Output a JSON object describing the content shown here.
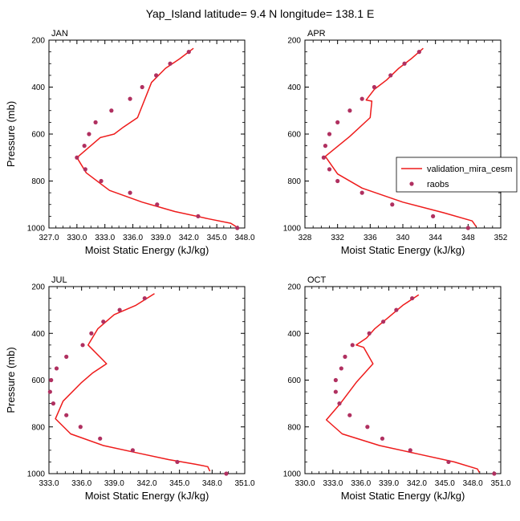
{
  "figure": {
    "title": "Yap_Island  latitude= 9.4 N longitude= 138.1 E"
  },
  "legend": {
    "placement": "right-middle",
    "items": [
      {
        "label": "validation_mira_cesm",
        "kind": "line",
        "color": "#ee1b1b"
      },
      {
        "label": "raobs",
        "kind": "marker",
        "color": "#b03060"
      }
    ]
  },
  "chart_data": [
    {
      "type": "line",
      "panel": "JAN",
      "xlabel": "Moist Static Energy (kJ/kg)",
      "ylabel": "Pressure (mb)",
      "xlim": [
        327.0,
        348.0
      ],
      "ylim": [
        200,
        1000
      ],
      "y_reversed": true,
      "xticks": [
        "327.0",
        "330.0",
        "333.0",
        "336.0",
        "339.0",
        "342.0",
        "345.0",
        "348.0"
      ],
      "yticks": [
        "200",
        "400",
        "600",
        "800",
        "1000"
      ],
      "series": [
        {
          "name": "validation_mira_cesm",
          "kind": "line",
          "points": [
            [
              342.5,
              235
            ],
            [
              341.0,
              280
            ],
            [
              339.5,
              320
            ],
            [
              338.0,
              380
            ],
            [
              336.5,
              530
            ],
            [
              335.0,
              570
            ],
            [
              334.0,
              600
            ],
            [
              332.5,
              615
            ],
            [
              330.0,
              700
            ],
            [
              331.0,
              765
            ],
            [
              333.5,
              840
            ],
            [
              337.0,
              890
            ],
            [
              340.5,
              930
            ],
            [
              344.0,
              960
            ],
            [
              346.5,
              980
            ],
            [
              347.3,
              1000
            ]
          ]
        },
        {
          "name": "raobs",
          "kind": "marker",
          "points": [
            [
              342.0,
              250
            ],
            [
              340.0,
              300
            ],
            [
              338.5,
              350
            ],
            [
              337.0,
              400
            ],
            [
              335.7,
              450
            ],
            [
              333.7,
              500
            ],
            [
              332.0,
              550
            ],
            [
              331.3,
              600
            ],
            [
              330.8,
              650
            ],
            [
              330.0,
              700
            ],
            [
              330.9,
              750
            ],
            [
              332.6,
              800
            ],
            [
              335.7,
              850
            ],
            [
              338.6,
              900
            ],
            [
              343.0,
              950
            ],
            [
              347.2,
              1000
            ]
          ]
        }
      ]
    },
    {
      "type": "line",
      "panel": "APR",
      "xlabel": "Moist Static Energy (kJ/kg)",
      "ylabel": "",
      "xlim": [
        328,
        352
      ],
      "ylim": [
        200,
        1000
      ],
      "y_reversed": true,
      "xticks": [
        "328",
        "332",
        "336",
        "340",
        "344",
        "348",
        "352"
      ],
      "yticks": [
        "200",
        "400",
        "600",
        "800",
        "1000"
      ],
      "series": [
        {
          "name": "validation_mira_cesm",
          "kind": "line",
          "points": [
            [
              342.5,
              235
            ],
            [
              341.0,
              280
            ],
            [
              339.5,
              320
            ],
            [
              338.0,
              370
            ],
            [
              336.5,
              410
            ],
            [
              335.5,
              455
            ],
            [
              336.2,
              460
            ],
            [
              336.0,
              530
            ],
            [
              333.5,
              610
            ],
            [
              330.5,
              695
            ],
            [
              332.0,
              770
            ],
            [
              335.0,
              830
            ],
            [
              340.0,
              890
            ],
            [
              345.0,
              935
            ],
            [
              348.5,
              970
            ],
            [
              349.0,
              995
            ]
          ]
        },
        {
          "name": "raobs",
          "kind": "marker",
          "points": [
            [
              342.0,
              250
            ],
            [
              340.2,
              300
            ],
            [
              338.5,
              350
            ],
            [
              336.5,
              400
            ],
            [
              335.0,
              450
            ],
            [
              333.5,
              500
            ],
            [
              332.0,
              550
            ],
            [
              331.0,
              600
            ],
            [
              330.5,
              650
            ],
            [
              330.3,
              700
            ],
            [
              331.0,
              750
            ],
            [
              332.0,
              800
            ],
            [
              335.0,
              850
            ],
            [
              338.7,
              900
            ],
            [
              343.7,
              950
            ],
            [
              348.0,
              1000
            ]
          ]
        }
      ]
    },
    {
      "type": "line",
      "panel": "JUL",
      "xlabel": "Moist Static Energy (kJ/kg)",
      "ylabel": "Pressure (mb)",
      "xlim": [
        333.0,
        351.0
      ],
      "ylim": [
        200,
        1000
      ],
      "y_reversed": true,
      "xticks": [
        "333.0",
        "336.0",
        "339.0",
        "342.0",
        "345.0",
        "348.0",
        "351.0"
      ],
      "yticks": [
        "200",
        "400",
        "600",
        "800",
        "1000"
      ],
      "series": [
        {
          "name": "validation_mira_cesm",
          "kind": "line",
          "points": [
            [
              342.7,
              230
            ],
            [
              341.0,
              280
            ],
            [
              339.0,
              320
            ],
            [
              337.5,
              380
            ],
            [
              336.6,
              450
            ],
            [
              338.3,
              530
            ],
            [
              337.0,
              570
            ],
            [
              336.0,
              610
            ],
            [
              334.3,
              690
            ],
            [
              333.6,
              765
            ],
            [
              335.0,
              830
            ],
            [
              338.0,
              880
            ],
            [
              341.0,
              910
            ],
            [
              344.0,
              940
            ],
            [
              346.5,
              960
            ],
            [
              347.6,
              970
            ],
            [
              347.8,
              990
            ]
          ]
        },
        {
          "name": "raobs",
          "kind": "marker",
          "points": [
            [
              341.8,
              250
            ],
            [
              339.5,
              300
            ],
            [
              338.0,
              350
            ],
            [
              336.9,
              400
            ],
            [
              336.1,
              450
            ],
            [
              334.6,
              500
            ],
            [
              333.7,
              550
            ],
            [
              333.2,
              600
            ],
            [
              333.1,
              650
            ],
            [
              333.4,
              700
            ],
            [
              334.6,
              750
            ],
            [
              335.9,
              800
            ],
            [
              337.7,
              850
            ],
            [
              340.7,
              900
            ],
            [
              344.8,
              950
            ],
            [
              349.3,
              1000
            ]
          ]
        }
      ]
    },
    {
      "type": "line",
      "panel": "OCT",
      "xlabel": "Moist Static Energy (kJ/kg)",
      "ylabel": "",
      "xlim": [
        330.0,
        351.0
      ],
      "ylim": [
        200,
        1000
      ],
      "y_reversed": true,
      "xticks": [
        "330.0",
        "333.0",
        "336.0",
        "339.0",
        "342.0",
        "345.0",
        "348.0",
        "351.0"
      ],
      "yticks": [
        "200",
        "400",
        "600",
        "800",
        "1000"
      ],
      "series": [
        {
          "name": "validation_mira_cesm",
          "kind": "line",
          "points": [
            [
              342.2,
              235
            ],
            [
              340.5,
              280
            ],
            [
              339.0,
              330
            ],
            [
              337.5,
              380
            ],
            [
              336.6,
              420
            ],
            [
              335.5,
              450
            ],
            [
              336.3,
              460
            ],
            [
              337.3,
              530
            ],
            [
              335.5,
              610
            ],
            [
              333.8,
              700
            ],
            [
              332.3,
              770
            ],
            [
              334.0,
              830
            ],
            [
              338.0,
              880
            ],
            [
              342.0,
              915
            ],
            [
              346.0,
              950
            ],
            [
              348.5,
              980
            ],
            [
              348.7,
              995
            ]
          ]
        },
        {
          "name": "raobs",
          "kind": "marker",
          "points": [
            [
              341.5,
              250
            ],
            [
              339.8,
              300
            ],
            [
              338.4,
              350
            ],
            [
              336.9,
              400
            ],
            [
              335.1,
              450
            ],
            [
              334.3,
              500
            ],
            [
              333.9,
              550
            ],
            [
              333.3,
              600
            ],
            [
              333.3,
              650
            ],
            [
              333.7,
              700
            ],
            [
              334.8,
              750
            ],
            [
              336.7,
              800
            ],
            [
              338.3,
              850
            ],
            [
              341.3,
              900
            ],
            [
              345.4,
              950
            ],
            [
              350.3,
              1000
            ]
          ]
        }
      ]
    }
  ]
}
